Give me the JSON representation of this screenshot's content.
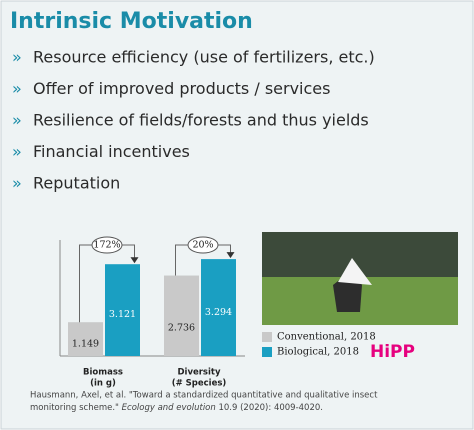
{
  "title": "Intrinsic Motivation",
  "bullet_symbol": "»",
  "bullets": [
    "Resource efficiency (use of fertilizers, etc.)",
    "Offer of improved products / services",
    "Resilience of fields/forests and thus yields",
    "Financial incentives",
    "Reputation"
  ],
  "chart_data": {
    "type": "bar",
    "categories": [
      [
        "Biomass",
        "(in g)"
      ],
      [
        "Diversity",
        "(# Species)"
      ]
    ],
    "series": [
      {
        "name": "Conventional, 2018",
        "color": "#c9c9c9",
        "values": [
          1.149,
          2.736
        ],
        "value_labels": [
          "1.149",
          "2.736"
        ]
      },
      {
        "name": "Biological, 2018",
        "color": "#1a9fc2",
        "values": [
          3.121,
          3.294
        ],
        "value_labels": [
          "3.121",
          "3.294"
        ]
      }
    ],
    "ylim": [
      0,
      3.4
    ],
    "annotations": [
      "172%",
      "20%"
    ]
  },
  "logo": "HiPP",
  "citation": {
    "line1": "Hausmann, Axel, et al. \"Toward a standardized quantitative and qualitative insect",
    "line2": "monitoring scheme.\"",
    "journal": "Ecology and evolution",
    "details": "10.9 (2020): 4009-4020."
  }
}
